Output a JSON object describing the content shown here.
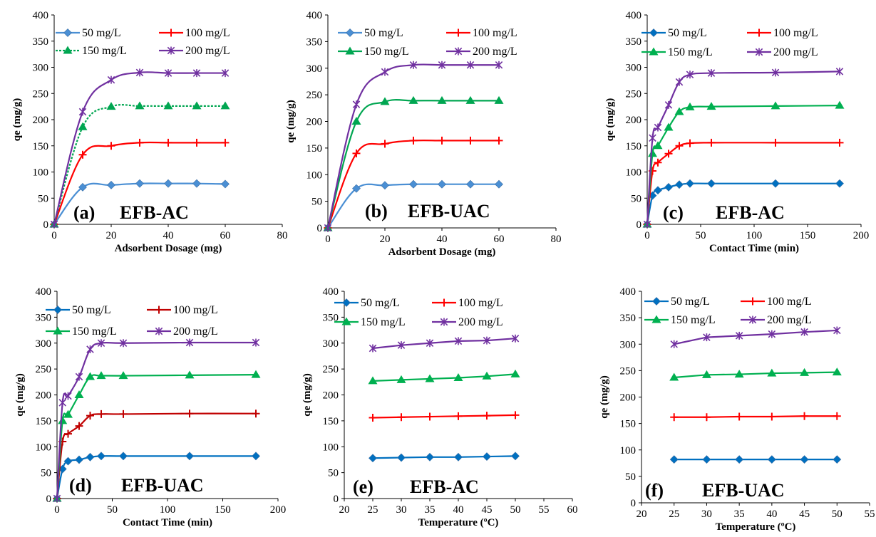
{
  "chart_data": [
    {
      "type": "line",
      "smooth": true,
      "panel_label": "(a)",
      "sample": "EFB-AC",
      "title": "",
      "xlabel": "Adsorbent Dosage (mg)",
      "ylabel": "qe (mg/g)",
      "xlim": [
        0,
        80
      ],
      "ylim": [
        0,
        400
      ],
      "xticks": [
        "0",
        "20",
        "40",
        "60",
        "80"
      ],
      "yticks": [
        "0",
        "50",
        "100",
        "150",
        "200",
        "250",
        "300",
        "350",
        "400"
      ],
      "legend": "top-left, 2 columns",
      "series": [
        {
          "name": "50 mg/L",
          "color": "#4a8fd4",
          "marker": "diamond",
          "dashed": false,
          "x": [
            0,
            10,
            20,
            30,
            40,
            50,
            60
          ],
          "y": [
            0,
            71,
            75,
            78,
            78,
            78,
            77
          ]
        },
        {
          "name": "100 mg/L",
          "color": "#ff0000",
          "marker": "plus",
          "dashed": false,
          "x": [
            0,
            10,
            20,
            30,
            40,
            50,
            60
          ],
          "y": [
            0,
            133,
            150,
            156,
            156,
            156,
            156
          ]
        },
        {
          "name": "150 mg/L",
          "color": "#00a651",
          "marker": "triangle",
          "dashed": true,
          "x": [
            0,
            10,
            20,
            30,
            40,
            50,
            60
          ],
          "y": [
            0,
            186,
            225,
            226,
            226,
            226,
            226
          ]
        },
        {
          "name": "200 mg/L",
          "color": "#7030a0",
          "marker": "star",
          "dashed": false,
          "x": [
            0,
            10,
            20,
            30,
            40,
            50,
            60
          ],
          "y": [
            0,
            215,
            276,
            290,
            289,
            289,
            289
          ]
        }
      ]
    },
    {
      "type": "line",
      "smooth": true,
      "panel_label": "(b)",
      "sample": "EFB-UAC",
      "title": "",
      "xlabel": "Adsorbent Dosage (mg)",
      "ylabel": "qe (mg/g)",
      "xlim": [
        0,
        80
      ],
      "ylim": [
        0,
        400
      ],
      "xticks": [
        "0",
        "20",
        "40",
        "60",
        "80"
      ],
      "yticks": [
        "0",
        "50",
        "100",
        "150",
        "200",
        "250",
        "300",
        "350",
        "400"
      ],
      "legend": "top, 2 columns",
      "series": [
        {
          "name": "50 mg/L",
          "color": "#4a8fd4",
          "marker": "diamond",
          "dashed": false,
          "x": [
            0,
            10,
            20,
            30,
            40,
            50,
            60
          ],
          "y": [
            0,
            74,
            80,
            82,
            82,
            82,
            82
          ]
        },
        {
          "name": "100 mg/L",
          "color": "#ff0000",
          "marker": "plus",
          "dashed": false,
          "x": [
            0,
            10,
            20,
            30,
            40,
            50,
            60
          ],
          "y": [
            0,
            140,
            158,
            164,
            164,
            164,
            164
          ]
        },
        {
          "name": "150 mg/L",
          "color": "#00a651",
          "marker": "triangle",
          "dashed": false,
          "x": [
            0,
            10,
            20,
            30,
            40,
            50,
            60
          ],
          "y": [
            0,
            200,
            237,
            239,
            239,
            239,
            239
          ]
        },
        {
          "name": "200 mg/L",
          "color": "#7030a0",
          "marker": "star",
          "dashed": false,
          "x": [
            0,
            10,
            20,
            30,
            40,
            50,
            60
          ],
          "y": [
            0,
            232,
            293,
            306,
            306,
            306,
            306
          ]
        }
      ]
    },
    {
      "type": "line",
      "smooth": true,
      "panel_label": "(c)",
      "sample": "EFB-AC",
      "title": "",
      "xlabel": "Contact Time (min)",
      "ylabel": "qe (mg/g)",
      "xlim": [
        0,
        200
      ],
      "ylim": [
        0,
        400
      ],
      "xticks": [
        "0",
        "50",
        "100",
        "150",
        "200"
      ],
      "yticks": [
        "0",
        "50",
        "100",
        "150",
        "200",
        "250",
        "300",
        "350",
        "400"
      ],
      "legend": "top, 2 columns",
      "series": [
        {
          "name": "50 mg/L",
          "color": "#0070c0",
          "marker": "diamond",
          "dashed": false,
          "x": [
            0,
            5,
            10,
            20,
            30,
            40,
            60,
            120,
            180
          ],
          "y": [
            0,
            55,
            65,
            71,
            76,
            78,
            78,
            78,
            78
          ]
        },
        {
          "name": "100 mg/L",
          "color": "#ff0000",
          "marker": "plus",
          "dashed": false,
          "x": [
            0,
            5,
            10,
            20,
            30,
            40,
            60,
            120,
            180
          ],
          "y": [
            0,
            102,
            118,
            135,
            150,
            155,
            156,
            156,
            156
          ]
        },
        {
          "name": "150 mg/L",
          "color": "#00b050",
          "marker": "triangle",
          "dashed": false,
          "x": [
            0,
            5,
            10,
            20,
            30,
            40,
            60,
            120,
            180
          ],
          "y": [
            0,
            135,
            150,
            185,
            215,
            224,
            225,
            226,
            227
          ]
        },
        {
          "name": "200 mg/L",
          "color": "#7030a0",
          "marker": "star",
          "dashed": false,
          "x": [
            0,
            5,
            10,
            20,
            30,
            40,
            60,
            120,
            180
          ],
          "y": [
            0,
            165,
            185,
            228,
            272,
            286,
            289,
            290,
            292
          ]
        }
      ]
    },
    {
      "type": "line",
      "smooth": true,
      "panel_label": "(d)",
      "sample": "EFB-UAC",
      "title": "",
      "xlabel": "Contact Time (min)",
      "ylabel": "qe (mg/g)",
      "xlim": [
        0,
        200
      ],
      "ylim": [
        0,
        400
      ],
      "xticks": [
        "0",
        "50",
        "100",
        "150",
        "200"
      ],
      "yticks": [
        "0",
        "50",
        "100",
        "150",
        "200",
        "250",
        "300",
        "350",
        "400"
      ],
      "legend": "top, 2 columns",
      "series": [
        {
          "name": "50 mg/L",
          "color": "#0070c0",
          "marker": "diamond",
          "dashed": false,
          "x": [
            0,
            5,
            10,
            20,
            30,
            40,
            60,
            120,
            180
          ],
          "y": [
            0,
            57,
            72,
            75,
            80,
            82,
            82,
            82,
            82
          ]
        },
        {
          "name": "100 mg/L",
          "color": "#c00000",
          "marker": "plus",
          "dashed": false,
          "x": [
            0,
            5,
            10,
            20,
            30,
            40,
            60,
            120,
            180
          ],
          "y": [
            0,
            110,
            125,
            140,
            160,
            163,
            163,
            164,
            164
          ]
        },
        {
          "name": "150 mg/L",
          "color": "#00b050",
          "marker": "triangle",
          "dashed": false,
          "x": [
            0,
            5,
            10,
            20,
            30,
            40,
            60,
            120,
            180
          ],
          "y": [
            0,
            150,
            162,
            200,
            235,
            237,
            237,
            238,
            239
          ]
        },
        {
          "name": "200 mg/L",
          "color": "#7030a0",
          "marker": "star",
          "dashed": false,
          "x": [
            0,
            5,
            10,
            20,
            30,
            40,
            60,
            120,
            180
          ],
          "y": [
            0,
            185,
            198,
            235,
            288,
            300,
            300,
            301,
            301
          ]
        }
      ]
    },
    {
      "type": "line",
      "smooth": false,
      "panel_label": "(e)",
      "sample": "EFB-AC",
      "title": "",
      "xlabel": "Temperature (ºC)",
      "ylabel": "qe (mg/g)",
      "xlim": [
        20,
        60
      ],
      "ylim": [
        0,
        400
      ],
      "xticks": [
        "20",
        "25",
        "30",
        "35",
        "40",
        "45",
        "50",
        "55",
        "60"
      ],
      "yticks": [
        "0",
        "50",
        "100",
        "150",
        "200",
        "250",
        "300",
        "350",
        "400"
      ],
      "legend": "top, 2 columns",
      "series": [
        {
          "name": "50 mg/L",
          "color": "#0070c0",
          "marker": "diamond",
          "dashed": false,
          "x": [
            25,
            30,
            35,
            40,
            45,
            50
          ],
          "y": [
            78,
            79,
            80,
            80,
            81,
            82
          ]
        },
        {
          "name": "100 mg/L",
          "color": "#ff0000",
          "marker": "plus",
          "dashed": false,
          "x": [
            25,
            30,
            35,
            40,
            45,
            50
          ],
          "y": [
            156,
            157,
            158,
            159,
            160,
            161
          ]
        },
        {
          "name": "150 mg/L",
          "color": "#00b050",
          "marker": "triangle",
          "dashed": false,
          "x": [
            25,
            30,
            35,
            40,
            45,
            50
          ],
          "y": [
            227,
            229,
            231,
            233,
            236,
            240
          ]
        },
        {
          "name": "200 mg/L",
          "color": "#7030a0",
          "marker": "star",
          "dashed": false,
          "x": [
            25,
            30,
            35,
            40,
            45,
            50
          ],
          "y": [
            290,
            296,
            300,
            304,
            305,
            309
          ]
        }
      ]
    },
    {
      "type": "line",
      "smooth": false,
      "panel_label": "(f)",
      "sample": "EFB-UAC",
      "title": "",
      "xlabel": "Temperature (ºC)",
      "ylabel": "qe (mg/g)",
      "xlim": [
        20,
        55
      ],
      "ylim": [
        0,
        400
      ],
      "xticks": [
        "20",
        "25",
        "30",
        "35",
        "40",
        "45",
        "50",
        "55"
      ],
      "yticks": [
        "0",
        "50",
        "100",
        "150",
        "200",
        "250",
        "300",
        "350",
        "400"
      ],
      "legend": "top, 2 columns",
      "series": [
        {
          "name": "50 mg/L",
          "color": "#0070c0",
          "marker": "diamond",
          "dashed": false,
          "x": [
            25,
            30,
            35,
            40,
            45,
            50
          ],
          "y": [
            82,
            82,
            82,
            82,
            82,
            82
          ]
        },
        {
          "name": "100 mg/L",
          "color": "#ff0000",
          "marker": "plus",
          "dashed": false,
          "x": [
            25,
            30,
            35,
            40,
            45,
            50
          ],
          "y": [
            162,
            162,
            163,
            163,
            164,
            164
          ]
        },
        {
          "name": "150 mg/L",
          "color": "#00b050",
          "marker": "triangle",
          "dashed": false,
          "x": [
            25,
            30,
            35,
            40,
            45,
            50
          ],
          "y": [
            237,
            242,
            243,
            245,
            246,
            247
          ]
        },
        {
          "name": "200 mg/L",
          "color": "#7030a0",
          "marker": "star",
          "dashed": false,
          "x": [
            25,
            30,
            35,
            40,
            45,
            50
          ],
          "y": [
            300,
            313,
            316,
            319,
            323,
            326
          ]
        }
      ]
    }
  ]
}
